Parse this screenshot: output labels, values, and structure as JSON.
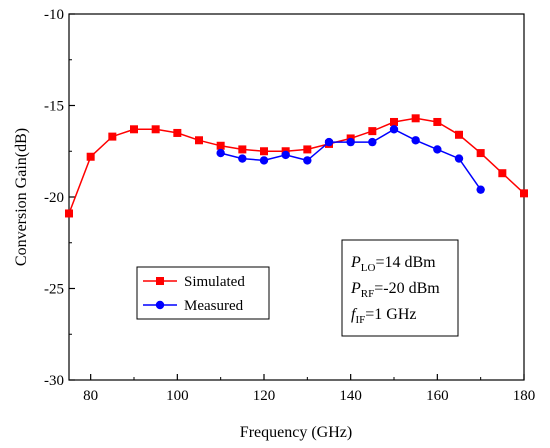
{
  "chart_data": {
    "type": "line",
    "xlabel": "Frequency (GHz)",
    "ylabel": "Conversion Gain(dB)",
    "xlim": [
      75,
      180
    ],
    "ylim": [
      -30,
      -10
    ],
    "xticks": [
      80,
      100,
      120,
      140,
      160,
      180
    ],
    "xtick_labels": [
      "80",
      "100",
      "120",
      "140",
      "160",
      "180"
    ],
    "yticks": [
      -30,
      -25,
      -20,
      -15,
      -10
    ],
    "ytick_labels": [
      "-30",
      "-25",
      "-20",
      "-15",
      "-10"
    ],
    "grid": false,
    "legend_position": "bottom-left",
    "series": [
      {
        "name": "Simulated",
        "color": "#ff0000",
        "marker": "square",
        "x": [
          75,
          80,
          85,
          90,
          95,
          100,
          105,
          110,
          115,
          120,
          125,
          130,
          135,
          140,
          145,
          150,
          155,
          160,
          165,
          170,
          175,
          180
        ],
        "y": [
          -20.9,
          -17.8,
          -16.7,
          -16.3,
          -16.3,
          -16.5,
          -16.9,
          -17.2,
          -17.4,
          -17.5,
          -17.5,
          -17.4,
          -17.1,
          -16.8,
          -16.4,
          -15.9,
          -15.7,
          -15.9,
          -16.6,
          -17.6,
          -18.7,
          -19.8
        ]
      },
      {
        "name": "Measured",
        "color": "#0000ff",
        "marker": "circle",
        "x": [
          110,
          115,
          120,
          125,
          130,
          135,
          140,
          145,
          150,
          155,
          160,
          165,
          170
        ],
        "y": [
          -17.6,
          -17.9,
          -18.0,
          -17.7,
          -18.0,
          -17.0,
          -17.0,
          -17.0,
          -16.3,
          -16.9,
          -17.4,
          -17.9,
          -19.6
        ]
      }
    ],
    "annotations": [
      {
        "italic": "P",
        "sub": "LO",
        "rest": "=14 dBm"
      },
      {
        "italic": "P",
        "sub": "RF",
        "rest": "=-20 dBm"
      },
      {
        "italic": "f",
        "sub": "IF",
        "rest": "=1 GHz"
      }
    ]
  }
}
